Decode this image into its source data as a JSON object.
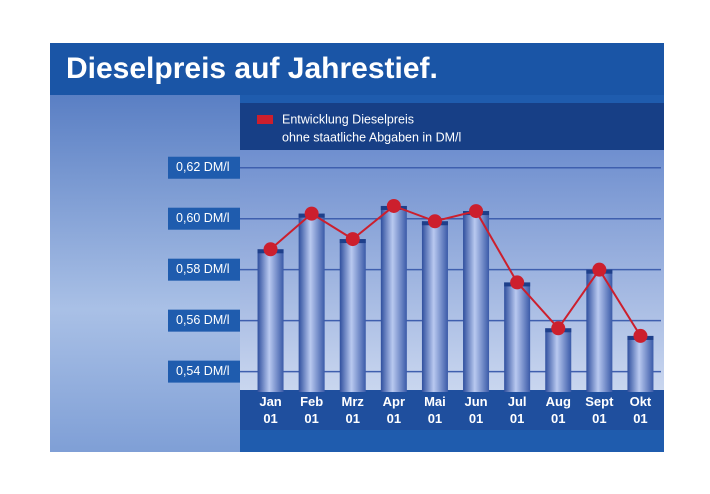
{
  "chart_data": {
    "type": "bar-line",
    "title": "Dieselpreis auf Jahrestief.",
    "subtitle": "ohne staatliche Abgaben in DM/l",
    "categories": [
      "Jan 01",
      "Feb 01",
      "Mrz 01",
      "Apr 01",
      "Mai 01",
      "Jun 01",
      "Jul 01",
      "Aug 01",
      "Sept 01",
      "Okt 01"
    ],
    "series": [
      {
        "name": "Entwicklung Dieselpreis",
        "color": "#cc1f2d",
        "values": [
          0.588,
          0.602,
          0.592,
          0.605,
          0.599,
          0.603,
          0.575,
          0.557,
          0.58,
          0.554
        ]
      }
    ],
    "ylim": [
      0.532,
      0.625
    ],
    "yticks": [
      {
        "value": 0.54,
        "label": "0,54 DM/l"
      },
      {
        "value": 0.56,
        "label": "0,56 DM/l"
      },
      {
        "value": 0.58,
        "label": "0,58 DM/l"
      },
      {
        "value": 0.6,
        "label": "0,60 DM/l"
      },
      {
        "value": 0.62,
        "label": "0,62 DM/l"
      }
    ],
    "grid": true
  }
}
